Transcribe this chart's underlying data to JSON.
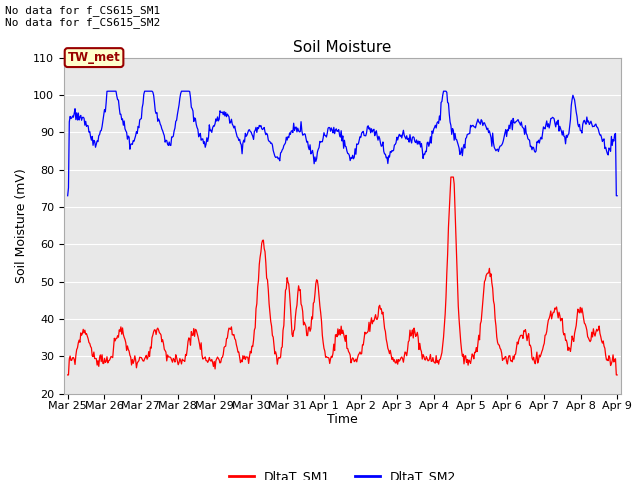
{
  "title": "Soil Moisture",
  "ylabel": "Soil Moisture (mV)",
  "xlabel": "Time",
  "ylim": [
    20,
    110
  ],
  "yticks": [
    20,
    30,
    40,
    50,
    60,
    70,
    80,
    90,
    100,
    110
  ],
  "annotation_text": "No data for f_CS615_SM1\nNo data for f_CS615_SM2",
  "legend_label1": "DltaT_SM1",
  "legend_label2": "DltaT_SM2",
  "color_sm1": "#ff0000",
  "color_sm2": "#0000ff",
  "box_label": "TW_met",
  "box_facecolor": "#ffffcc",
  "box_edgecolor": "#990000",
  "plot_bg_color": "#e8e8e8",
  "x_tick_labels": [
    "Mar 25",
    "Mar 26",
    "Mar 27",
    "Mar 28",
    "Mar 29",
    "Mar 30",
    "Mar 31",
    "Apr 1",
    "Apr 2",
    "Apr 3",
    "Apr 4",
    "Apr 5",
    "Apr 6",
    "Apr 7",
    "Apr 8",
    "Apr 9"
  ],
  "num_points": 672
}
